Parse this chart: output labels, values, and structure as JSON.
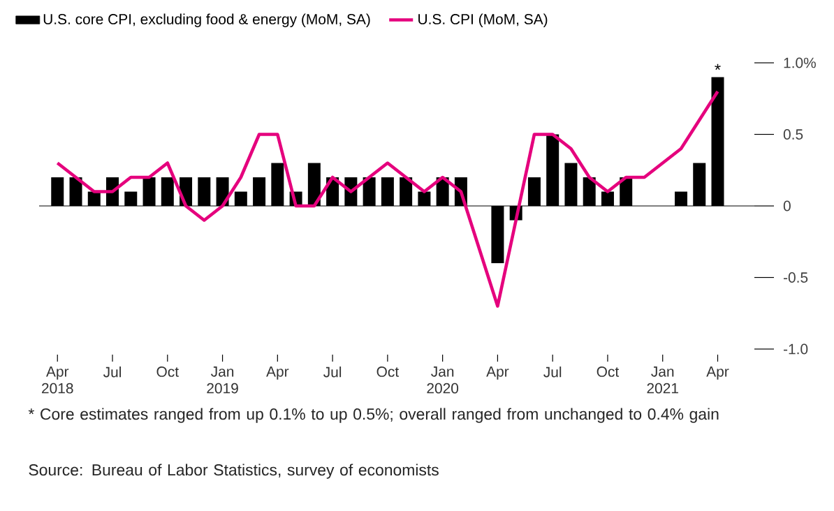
{
  "chart_data": {
    "type": "bar",
    "legend": "top left",
    "marker": "none",
    "line_style": "solid",
    "x": [
      "2018-04",
      "2018-05",
      "2018-06",
      "2018-07",
      "2018-08",
      "2018-09",
      "2018-10",
      "2018-11",
      "2018-12",
      "2019-01",
      "2019-02",
      "2019-03",
      "2019-04",
      "2019-05",
      "2019-06",
      "2019-07",
      "2019-08",
      "2019-09",
      "2019-10",
      "2019-11",
      "2019-12",
      "2020-01",
      "2020-02",
      "2020-03",
      "2020-04",
      "2020-05",
      "2020-06",
      "2020-07",
      "2020-08",
      "2020-09",
      "2020-10",
      "2020-11",
      "2020-12",
      "2021-01",
      "2021-02",
      "2021-03",
      "2021-04"
    ],
    "series": [
      {
        "name": "U.S. core CPI, excluding food & energy (MoM, SA)",
        "color": "#000000",
        "values": [
          0.2,
          0.2,
          0.1,
          0.2,
          0.1,
          0.2,
          0.2,
          0.2,
          0.2,
          0.2,
          0.1,
          0.2,
          0.3,
          0.1,
          0.3,
          0.2,
          0.2,
          0.2,
          0.2,
          0.2,
          0.1,
          0.2,
          0.2,
          0,
          -0.4,
          -0.1,
          0.2,
          0.5,
          0.3,
          0.2,
          0.1,
          0.2,
          0,
          0,
          0.1,
          0.3,
          0.9
        ]
      },
      {
        "name": "U.S. CPI (MoM, SA)",
        "type": "line",
        "color": "#e5007d",
        "values": [
          0.3,
          0.2,
          0.1,
          0.1,
          0.2,
          0.2,
          0.3,
          0,
          -0.1,
          0,
          0.2,
          0.5,
          0.5,
          0,
          0,
          0.2,
          0.1,
          0.2,
          0.3,
          0.2,
          0.1,
          0.2,
          0.1,
          -0.3,
          -0.7,
          -0.1,
          0.5,
          0.5,
          0.4,
          0.2,
          0.1,
          0.2,
          0.2,
          0.3,
          0.4,
          0.6,
          0.8
        ]
      }
    ],
    "xlim": [
      "2018-03",
      "2021-06"
    ],
    "xticks": [
      {
        "value": "2018-04",
        "label": "Apr 2018"
      },
      {
        "value": "2018-07",
        "label": "Jul"
      },
      {
        "value": "2018-10",
        "label": "Oct"
      },
      {
        "value": "2019-01",
        "label": "Jan 2019"
      },
      {
        "value": "2019-04",
        "label": "Apr"
      },
      {
        "value": "2019-07",
        "label": "Jul"
      },
      {
        "value": "2019-10",
        "label": "Oct"
      },
      {
        "value": "2020-01",
        "label": "Jan 2020"
      },
      {
        "value": "2020-04",
        "label": "Apr"
      },
      {
        "value": "2020-07",
        "label": "Jul"
      },
      {
        "value": "2020-10",
        "label": "Oct"
      },
      {
        "value": "2021-01",
        "label": "Jan 2021"
      },
      {
        "value": "2021-04",
        "label": "Apr"
      }
    ],
    "ylim": [
      -1,
      1
    ],
    "ref_lines": [
      {
        "axis": "y",
        "value": 0,
        "color": "#000000"
      }
    ],
    "yticks": [
      {
        "value": 1,
        "label": "1.0%"
      },
      0.5,
      0,
      -0.5,
      {
        "value": -1,
        "label": "-1.0"
      }
    ],
    "annotations": [
      {
        "text": "*",
        "x": "2021-04",
        "y": 0.9
      },
      "* Core estimates ranged from up 0.1% to up 0.5%; overall ranged from unchanged to 0.4% gain",
      "Source: Bureau of Labor Statistics, survey of economists"
    ]
  }
}
